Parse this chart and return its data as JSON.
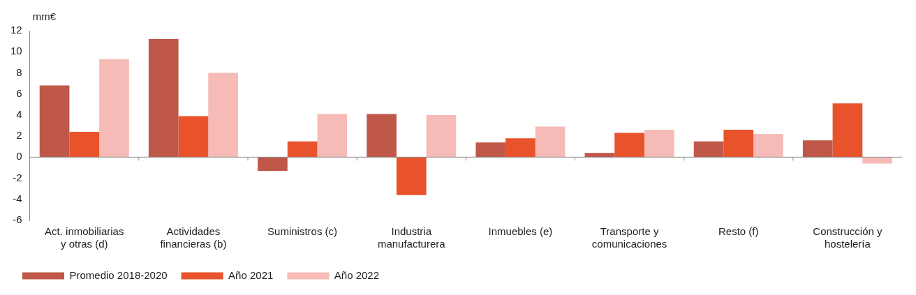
{
  "chart_data": {
    "type": "bar",
    "ylabel": "mm€",
    "categories": [
      "Act. inmobiliarias y otras (d)",
      "Actividades financieras (b)",
      "Suministros (c)",
      "Industria manufacturera",
      "Inmuebles (e)",
      "Transporte y comunicaciones",
      "Resto (f)",
      "Construcción y hostelería"
    ],
    "series": [
      {
        "name": "Promedio 2018-2020",
        "color": "#bf5848",
        "values": [
          6.8,
          11.2,
          -1.3,
          4.1,
          1.4,
          0.4,
          1.5,
          1.6
        ]
      },
      {
        "name": "Año 2021",
        "color": "#e9532c",
        "values": [
          2.4,
          3.9,
          1.5,
          -3.6,
          1.8,
          2.3,
          2.6,
          5.1
        ]
      },
      {
        "name": "Año 2022",
        "color": "#f6bbb6",
        "values": [
          9.3,
          8.0,
          4.1,
          4.0,
          2.9,
          2.6,
          2.2,
          -0.6
        ]
      }
    ],
    "ylim": [
      -6,
      12
    ],
    "yticks": [
      -6,
      -4,
      -2,
      0,
      2,
      4,
      6,
      8,
      10,
      12
    ],
    "grid": false,
    "ref_lines": [
      {
        "axis": "y",
        "value": 0,
        "color": "#8c8c8c"
      }
    ],
    "legend": "bottom left"
  }
}
